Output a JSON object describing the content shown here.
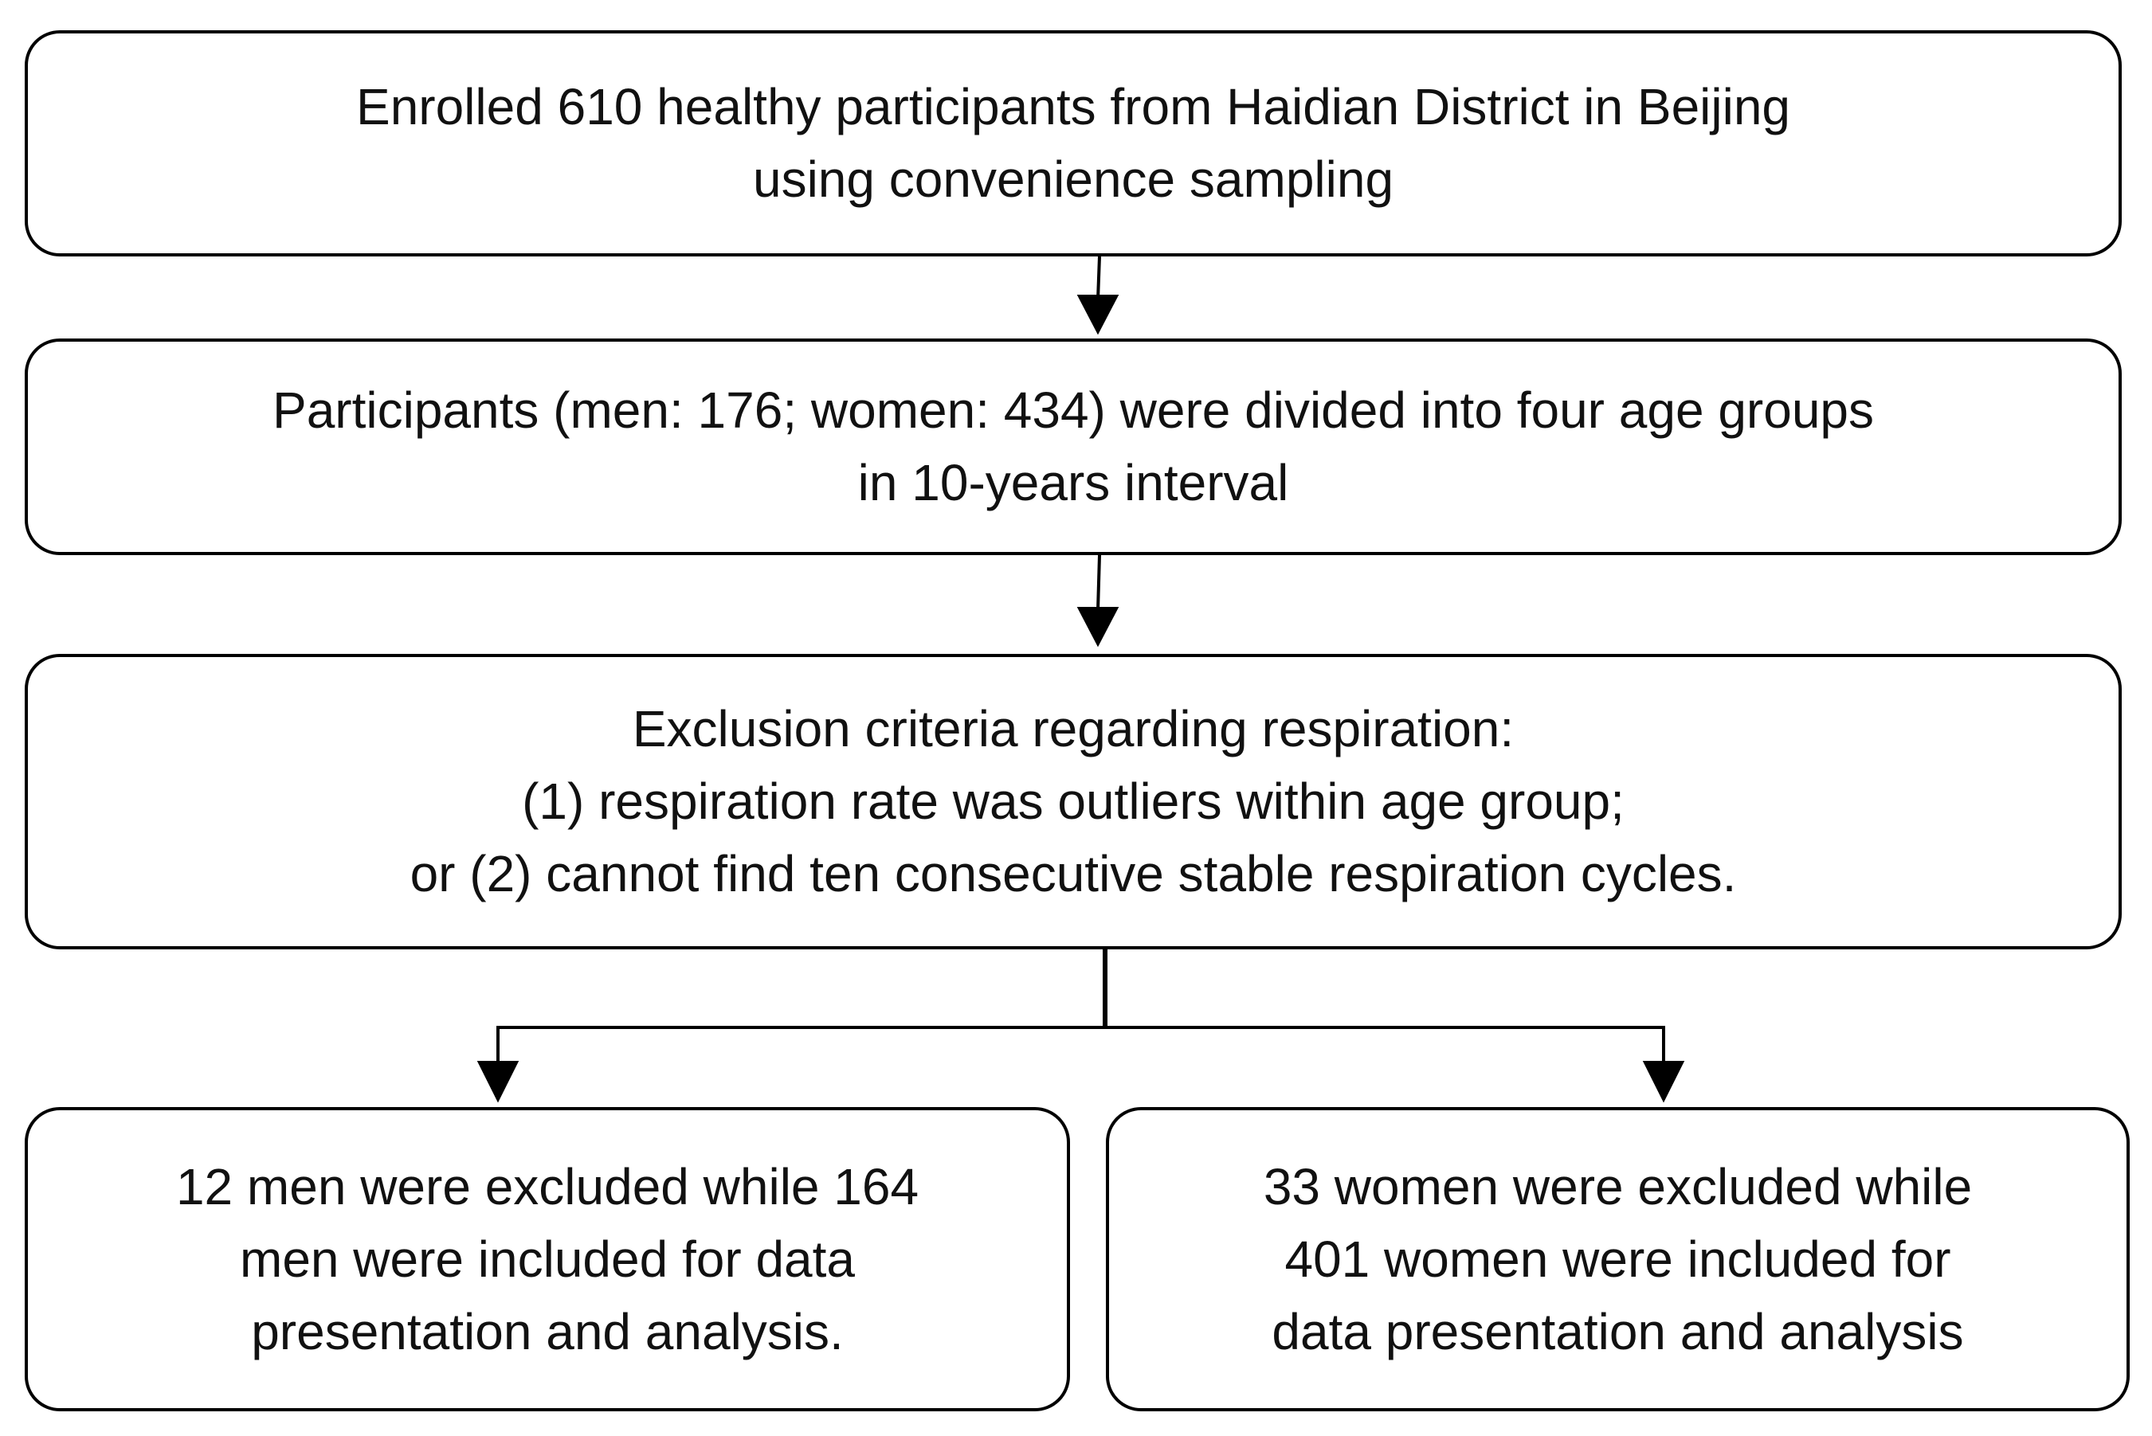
{
  "nodes": [
    {
      "lines": [
        "Enrolled 610 healthy participants from Haidian District in Beijing",
        "using convenience sampling"
      ]
    },
    {
      "lines": [
        "Participants (men: 176; women: 434) were divided into four age groups",
        "in 10-years interval"
      ]
    },
    {
      "lines": [
        "Exclusion criteria regarding respiration:",
        "(1) respiration rate was outliers within age group;",
        "or (2) cannot find ten consecutive stable respiration cycles."
      ]
    },
    {
      "lines": [
        "12 men were excluded while 164",
        "men were included for data",
        "presentation and analysis."
      ]
    },
    {
      "lines": [
        "33 women were excluded while",
        "401 women were included for",
        "data presentation and analysis"
      ]
    }
  ]
}
